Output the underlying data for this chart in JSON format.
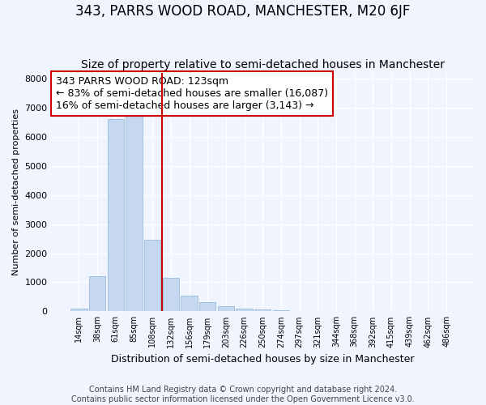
{
  "title": "343, PARRS WOOD ROAD, MANCHESTER, M20 6JF",
  "subtitle": "Size of property relative to semi-detached houses in Manchester",
  "xlabel": "Distribution of semi-detached houses by size in Manchester",
  "ylabel": "Number of semi-detached properties",
  "annotation_line1": "343 PARRS WOOD ROAD: 123sqm",
  "annotation_line2": "← 83% of semi-detached houses are smaller (16,087)",
  "annotation_line3": "16% of semi-detached houses are larger (3,143) →",
  "footer_line1": "Contains HM Land Registry data © Crown copyright and database right 2024.",
  "footer_line2": "Contains public sector information licensed under the Open Government Licence v3.0.",
  "categories": [
    "14sqm",
    "38sqm",
    "61sqm",
    "85sqm",
    "108sqm",
    "132sqm",
    "156sqm",
    "179sqm",
    "203sqm",
    "226sqm",
    "250sqm",
    "274sqm",
    "297sqm",
    "321sqm",
    "344sqm",
    "368sqm",
    "392sqm",
    "415sqm",
    "439sqm",
    "462sqm",
    "486sqm"
  ],
  "values": [
    100,
    1200,
    6600,
    6700,
    2450,
    1150,
    550,
    330,
    175,
    100,
    80,
    50,
    0,
    0,
    0,
    0,
    0,
    0,
    0,
    0,
    0
  ],
  "bar_color": "#c5d8f0",
  "bar_edge_color": "#9bbcdb",
  "red_line_x": 4.5,
  "red_line_color": "#cc0000",
  "annotation_box_color": "#ffffff",
  "annotation_box_edge": "#cc0000",
  "ylim": [
    0,
    8200
  ],
  "yticks": [
    0,
    1000,
    2000,
    3000,
    4000,
    5000,
    6000,
    7000,
    8000
  ],
  "bg_color": "#f0f4ff",
  "grid_color": "#d0d8e8",
  "title_fontsize": 12,
  "subtitle_fontsize": 10,
  "annotation_fontsize": 9,
  "footer_fontsize": 7
}
